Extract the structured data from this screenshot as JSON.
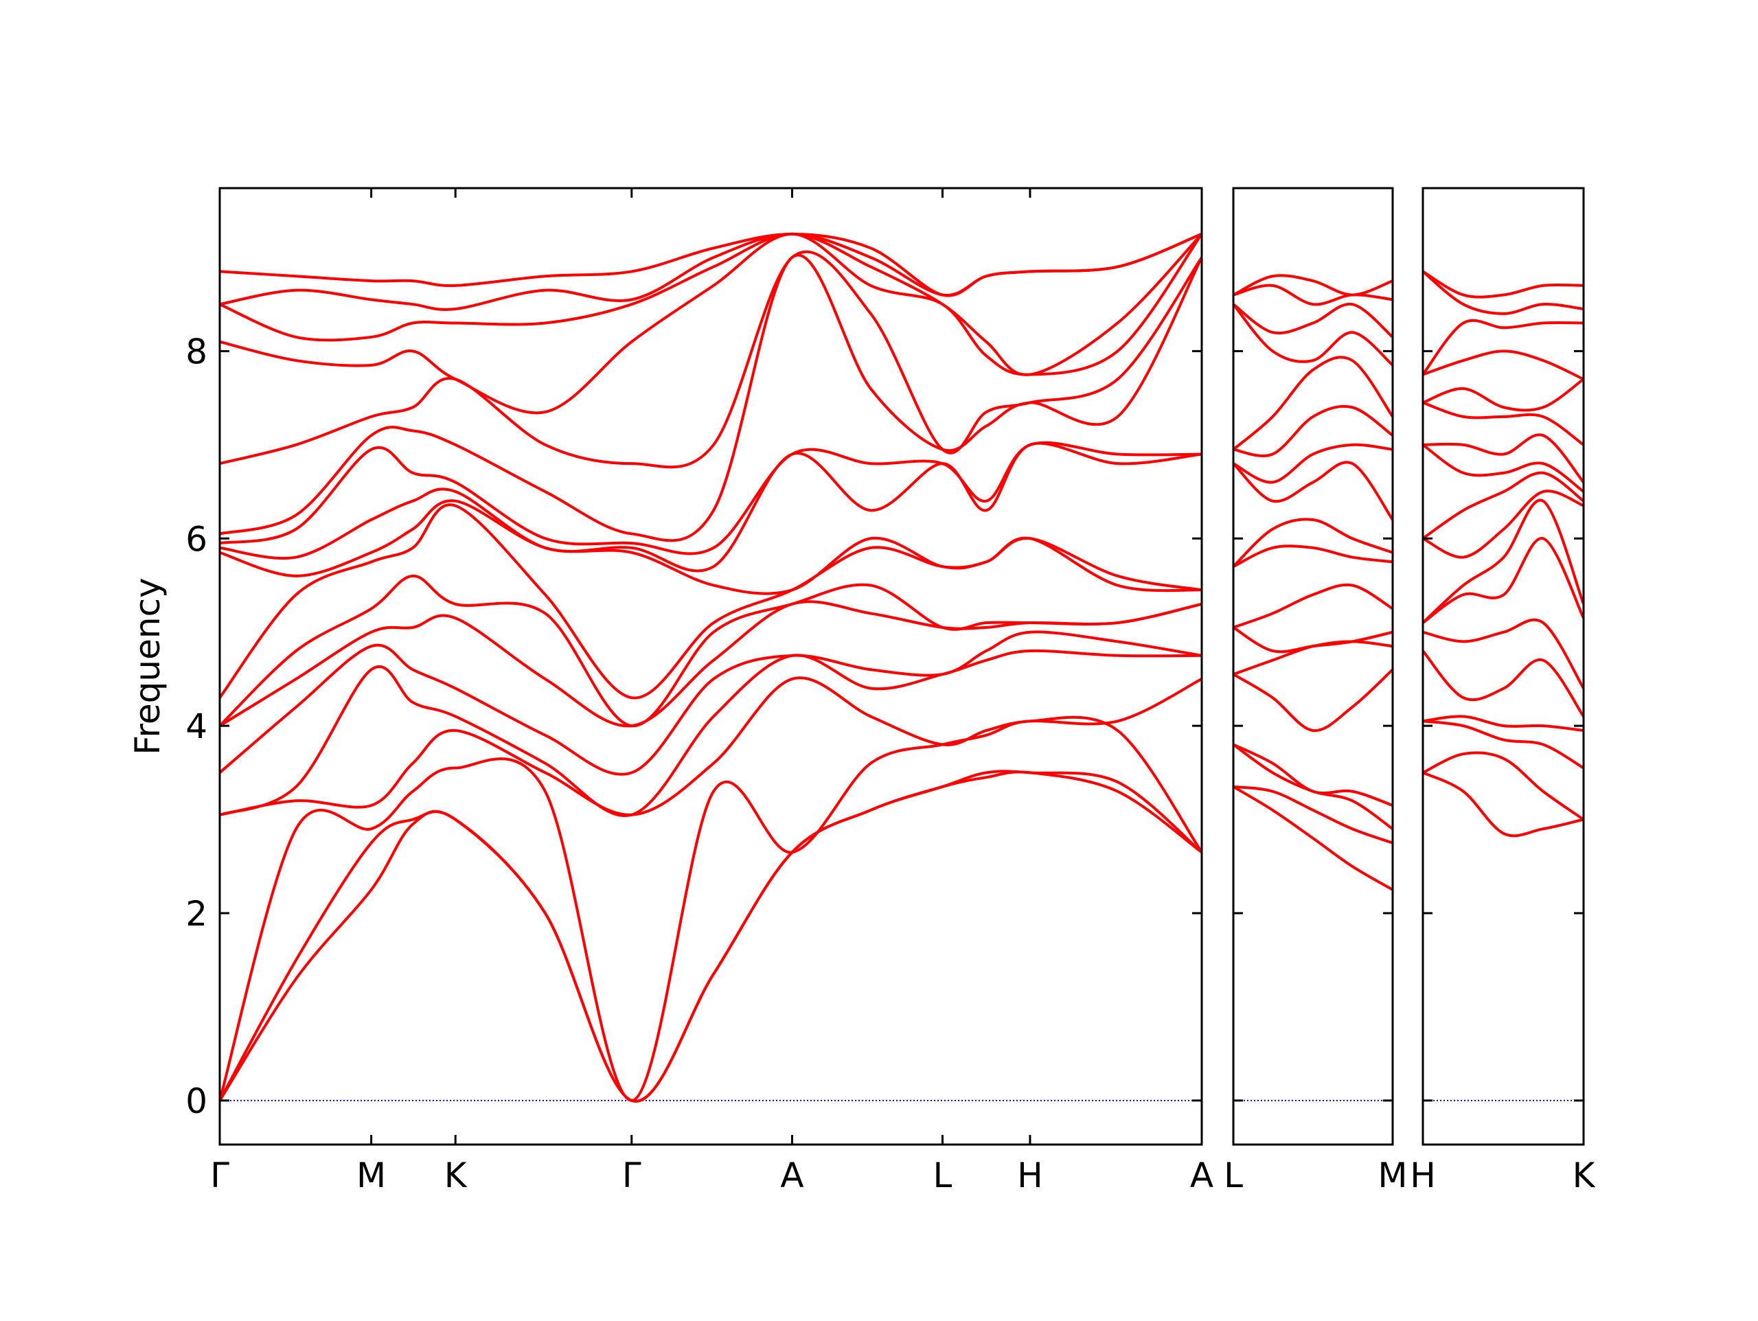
{
  "chart_data": [
    {
      "type": "line",
      "color": "#ff0000",
      "ylabel": "Frequency",
      "xlim": [
        0,
        8.75
      ],
      "ylim": [
        -0.47,
        9.74
      ],
      "yticks": [
        0,
        2,
        4,
        6,
        8
      ],
      "show_ytick_labels": true,
      "hline": {
        "value": 0,
        "color": "#0000ff"
      },
      "xticks": [
        {
          "value": 0,
          "label": "Γ"
        },
        {
          "value": 1.35,
          "label": "M"
        },
        {
          "value": 2.1,
          "label": "K"
        },
        {
          "value": 3.67,
          "label": "Γ"
        },
        {
          "value": 5.1,
          "label": "A"
        },
        {
          "value": 6.44,
          "label": "L"
        },
        {
          "value": 7.22,
          "label": "H"
        },
        {
          "value": 8.75,
          "label": "A"
        }
      ],
      "x": [
        0,
        0.68,
        1.35,
        1.72,
        2.1,
        2.9,
        3.67,
        4.4,
        5.1,
        5.8,
        6.44,
        6.83,
        7.22,
        8.0,
        8.75
      ],
      "series": [
        {
          "values": [
            0,
            1.3,
            2.25,
            2.95,
            3.0,
            2.0,
            0,
            1.35,
            2.65,
            3.1,
            3.35,
            3.45,
            3.5,
            3.3,
            2.65
          ]
        },
        {
          "values": [
            0,
            1.5,
            2.75,
            3.0,
            3.0,
            2.0,
            0,
            1.35,
            2.65,
            3.1,
            3.35,
            3.5,
            3.5,
            3.4,
            2.65
          ]
        },
        {
          "values": [
            0,
            2.9,
            2.9,
            3.3,
            3.55,
            3.3,
            0,
            3.3,
            2.65,
            3.6,
            3.8,
            3.9,
            4.05,
            3.95,
            2.65
          ]
        },
        {
          "values": [
            3.05,
            3.2,
            3.15,
            3.6,
            3.95,
            3.5,
            3.05,
            3.6,
            4.5,
            4.1,
            3.8,
            3.95,
            4.05,
            4.05,
            4.5
          ]
        },
        {
          "values": [
            3.05,
            3.35,
            4.6,
            4.25,
            4.1,
            3.6,
            3.05,
            4.1,
            4.75,
            4.4,
            4.55,
            4.7,
            4.8,
            4.75,
            4.75
          ]
        },
        {
          "values": [
            3.5,
            4.2,
            4.85,
            4.6,
            4.4,
            3.9,
            3.5,
            4.5,
            4.75,
            4.6,
            4.55,
            4.8,
            5.0,
            4.9,
            4.75
          ]
        },
        {
          "values": [
            4.0,
            4.5,
            5.0,
            5.05,
            5.15,
            4.5,
            4.0,
            4.7,
            5.3,
            5.2,
            5.05,
            5.05,
            5.1,
            5.1,
            5.3
          ]
        },
        {
          "values": [
            4.0,
            4.8,
            5.25,
            5.6,
            5.3,
            5.2,
            4.0,
            5.0,
            5.3,
            5.5,
            5.05,
            5.1,
            5.1,
            5.1,
            5.3
          ]
        },
        {
          "values": [
            4.3,
            5.4,
            5.75,
            5.9,
            6.35,
            5.4,
            4.3,
            5.1,
            5.45,
            5.9,
            5.7,
            5.75,
            6.0,
            5.5,
            5.45
          ]
        },
        {
          "values": [
            5.85,
            5.6,
            5.85,
            6.1,
            6.4,
            5.9,
            5.85,
            5.5,
            5.45,
            6.0,
            5.7,
            5.75,
            6.0,
            5.6,
            5.45
          ]
        },
        {
          "values": [
            5.9,
            5.8,
            6.2,
            6.4,
            6.5,
            5.9,
            5.9,
            5.7,
            6.9,
            6.3,
            6.8,
            6.3,
            7.0,
            6.8,
            6.9
          ]
        },
        {
          "values": [
            5.95,
            6.1,
            6.95,
            6.7,
            6.6,
            6.0,
            5.95,
            5.9,
            6.9,
            6.8,
            6.8,
            6.4,
            7.0,
            6.9,
            6.9
          ]
        },
        {
          "values": [
            6.05,
            6.25,
            7.1,
            7.15,
            7.0,
            6.5,
            6.05,
            6.3,
            9.0,
            7.6,
            6.95,
            7.2,
            7.45,
            7.3,
            9.0
          ]
        },
        {
          "values": [
            6.8,
            7.0,
            7.3,
            7.4,
            7.7,
            7.0,
            6.8,
            7.0,
            9.0,
            8.4,
            6.95,
            7.35,
            7.45,
            7.7,
            9.0
          ]
        },
        {
          "values": [
            8.1,
            7.9,
            7.85,
            8.0,
            7.7,
            7.35,
            8.1,
            8.7,
            9.25,
            8.7,
            8.5,
            7.95,
            7.75,
            8.0,
            9.25
          ]
        },
        {
          "values": [
            8.5,
            8.15,
            8.15,
            8.3,
            8.3,
            8.3,
            8.5,
            8.9,
            9.25,
            8.9,
            8.5,
            8.1,
            7.75,
            8.3,
            9.25
          ]
        },
        {
          "values": [
            8.5,
            8.65,
            8.55,
            8.5,
            8.45,
            8.65,
            8.55,
            9.0,
            9.25,
            9.0,
            8.6,
            8.8,
            8.85,
            8.9,
            9.25
          ]
        },
        {
          "values": [
            8.85,
            8.8,
            8.75,
            8.75,
            8.7,
            8.8,
            8.85,
            9.1,
            9.25,
            9.1,
            8.6,
            8.8,
            8.85,
            8.9,
            9.25
          ]
        }
      ]
    },
    {
      "type": "line",
      "color": "#ff0000",
      "xlim": [
        0,
        1.42
      ],
      "ylim": [
        -0.47,
        9.74
      ],
      "yticks": [
        0,
        2,
        4,
        6,
        8
      ],
      "show_ytick_labels": false,
      "hline": {
        "value": 0,
        "color": "#0000ff"
      },
      "xticks": [
        {
          "value": 0,
          "label": "L"
        },
        {
          "value": 1.42,
          "label": "M"
        }
      ],
      "x": [
        0,
        0.35,
        0.71,
        1.06,
        1.42
      ],
      "series": [
        {
          "values": [
            3.35,
            3.1,
            2.8,
            2.5,
            2.25
          ]
        },
        {
          "values": [
            3.35,
            3.3,
            3.1,
            2.9,
            2.75
          ]
        },
        {
          "values": [
            3.8,
            3.5,
            3.3,
            3.2,
            2.9
          ]
        },
        {
          "values": [
            3.8,
            3.6,
            3.3,
            3.3,
            3.15
          ]
        },
        {
          "values": [
            4.55,
            4.3,
            3.95,
            4.2,
            4.6
          ]
        },
        {
          "values": [
            4.55,
            4.7,
            4.85,
            4.9,
            4.85
          ]
        },
        {
          "values": [
            5.05,
            4.8,
            4.85,
            4.9,
            5.0
          ]
        },
        {
          "values": [
            5.05,
            5.2,
            5.4,
            5.5,
            5.25
          ]
        },
        {
          "values": [
            5.7,
            5.9,
            5.9,
            5.8,
            5.75
          ]
        },
        {
          "values": [
            5.7,
            6.1,
            6.2,
            6.0,
            5.85
          ]
        },
        {
          "values": [
            6.8,
            6.4,
            6.6,
            6.8,
            6.2
          ]
        },
        {
          "values": [
            6.8,
            6.6,
            6.9,
            7.0,
            6.95
          ]
        },
        {
          "values": [
            6.95,
            6.9,
            7.3,
            7.4,
            7.1
          ]
        },
        {
          "values": [
            6.95,
            7.3,
            7.8,
            7.9,
            7.3
          ]
        },
        {
          "values": [
            8.5,
            8.0,
            7.9,
            8.2,
            7.85
          ]
        },
        {
          "values": [
            8.5,
            8.2,
            8.3,
            8.5,
            8.15
          ]
        },
        {
          "values": [
            8.6,
            8.7,
            8.5,
            8.6,
            8.55
          ]
        },
        {
          "values": [
            8.6,
            8.8,
            8.75,
            8.6,
            8.75
          ]
        }
      ]
    },
    {
      "type": "line",
      "color": "#ff0000",
      "xlim": [
        0,
        1.43
      ],
      "ylim": [
        -0.47,
        9.74
      ],
      "yticks": [
        0,
        2,
        4,
        6,
        8
      ],
      "show_ytick_labels": false,
      "hline": {
        "value": 0,
        "color": "#0000ff"
      },
      "xticks": [
        {
          "value": 0,
          "label": "H"
        },
        {
          "value": 1.43,
          "label": "K"
        }
      ],
      "x": [
        0,
        0.36,
        0.72,
        1.07,
        1.43
      ],
      "series": [
        {
          "values": [
            3.5,
            3.3,
            2.85,
            2.9,
            3.0
          ]
        },
        {
          "values": [
            3.5,
            3.7,
            3.65,
            3.3,
            3.0
          ]
        },
        {
          "values": [
            4.05,
            4.0,
            3.85,
            3.8,
            3.55
          ]
        },
        {
          "values": [
            4.05,
            4.1,
            4.0,
            4.0,
            3.95
          ]
        },
        {
          "values": [
            4.8,
            4.3,
            4.4,
            4.7,
            4.1
          ]
        },
        {
          "values": [
            5.0,
            4.9,
            5.0,
            5.1,
            4.4
          ]
        },
        {
          "values": [
            5.1,
            5.4,
            5.4,
            6.0,
            5.15
          ]
        },
        {
          "values": [
            5.1,
            5.5,
            5.8,
            6.4,
            5.3
          ]
        },
        {
          "values": [
            6.0,
            5.8,
            6.1,
            6.5,
            6.35
          ]
        },
        {
          "values": [
            6.0,
            6.3,
            6.5,
            6.7,
            6.4
          ]
        },
        {
          "values": [
            7.0,
            6.7,
            6.7,
            6.8,
            6.5
          ]
        },
        {
          "values": [
            7.0,
            7.0,
            6.9,
            7.1,
            6.6
          ]
        },
        {
          "values": [
            7.45,
            7.3,
            7.3,
            7.3,
            7.0
          ]
        },
        {
          "values": [
            7.45,
            7.6,
            7.4,
            7.4,
            7.7
          ]
        },
        {
          "values": [
            7.75,
            7.9,
            8.0,
            7.9,
            7.7
          ]
        },
        {
          "values": [
            7.75,
            8.3,
            8.25,
            8.3,
            8.3
          ]
        },
        {
          "values": [
            8.85,
            8.5,
            8.4,
            8.5,
            8.45
          ]
        },
        {
          "values": [
            8.85,
            8.6,
            8.6,
            8.7,
            8.7
          ]
        }
      ]
    }
  ]
}
